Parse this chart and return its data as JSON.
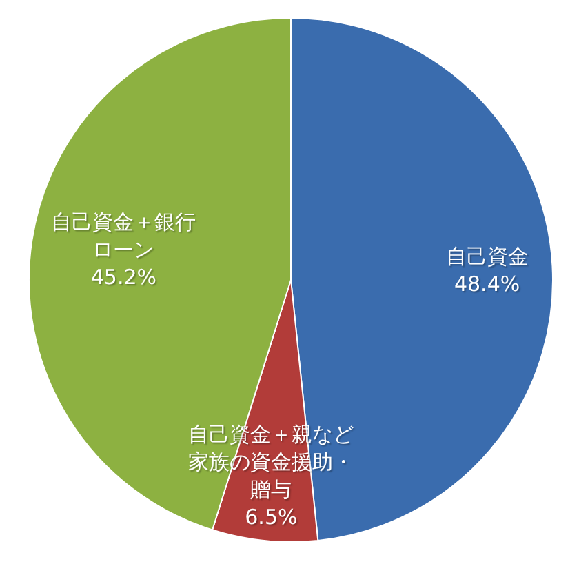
{
  "chart_data": {
    "type": "pie",
    "categories": [
      "自己資金",
      "自己資金＋親など家族の資金援助・贈与",
      "自己資金＋銀行ローン"
    ],
    "values": [
      48.4,
      6.5,
      45.2
    ],
    "colors": [
      "#3a6cae",
      "#b23c39",
      "#8db141"
    ],
    "value_labels": [
      "48.4%",
      "6.5%",
      "45.2%"
    ]
  }
}
